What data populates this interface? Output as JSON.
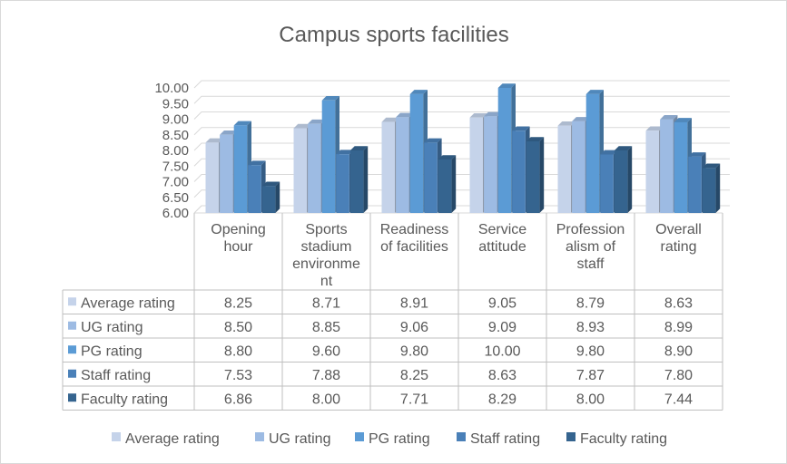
{
  "chart_data": {
    "type": "bar",
    "title": "Campus sports facilities",
    "categories": [
      [
        "Opening",
        "hour"
      ],
      [
        "Sports",
        "stadium",
        "environme",
        "nt"
      ],
      [
        "Readiness",
        "of facilities"
      ],
      [
        "Service",
        "attitude"
      ],
      [
        "Profession",
        "alism of",
        "staff"
      ],
      [
        "Overall",
        "rating"
      ]
    ],
    "series": [
      {
        "name": "Average rating",
        "color": "#c5d3ea",
        "values": [
          8.25,
          8.71,
          8.91,
          9.05,
          8.79,
          8.63
        ]
      },
      {
        "name": "UG rating",
        "color": "#9dbbe3",
        "values": [
          8.5,
          8.85,
          9.06,
          9.09,
          8.93,
          8.99
        ]
      },
      {
        "name": "PG rating",
        "color": "#5b9bd5",
        "values": [
          8.8,
          9.6,
          9.8,
          10.0,
          9.8,
          8.9
        ]
      },
      {
        "name": "Staff rating",
        "color": "#4a80b8",
        "values": [
          7.53,
          7.88,
          8.25,
          8.63,
          7.87,
          7.8
        ]
      },
      {
        "name": "Faculty rating",
        "color": "#35648f",
        "values": [
          6.86,
          8.0,
          7.71,
          8.29,
          8.0,
          7.44
        ]
      }
    ],
    "ylim": [
      6.0,
      10.0
    ],
    "yticks": [
      "6.00",
      "6.50",
      "7.00",
      "7.50",
      "8.00",
      "8.50",
      "9.00",
      "9.50",
      "10.00"
    ],
    "grid": true,
    "legend": "bottom",
    "data_table": true
  }
}
